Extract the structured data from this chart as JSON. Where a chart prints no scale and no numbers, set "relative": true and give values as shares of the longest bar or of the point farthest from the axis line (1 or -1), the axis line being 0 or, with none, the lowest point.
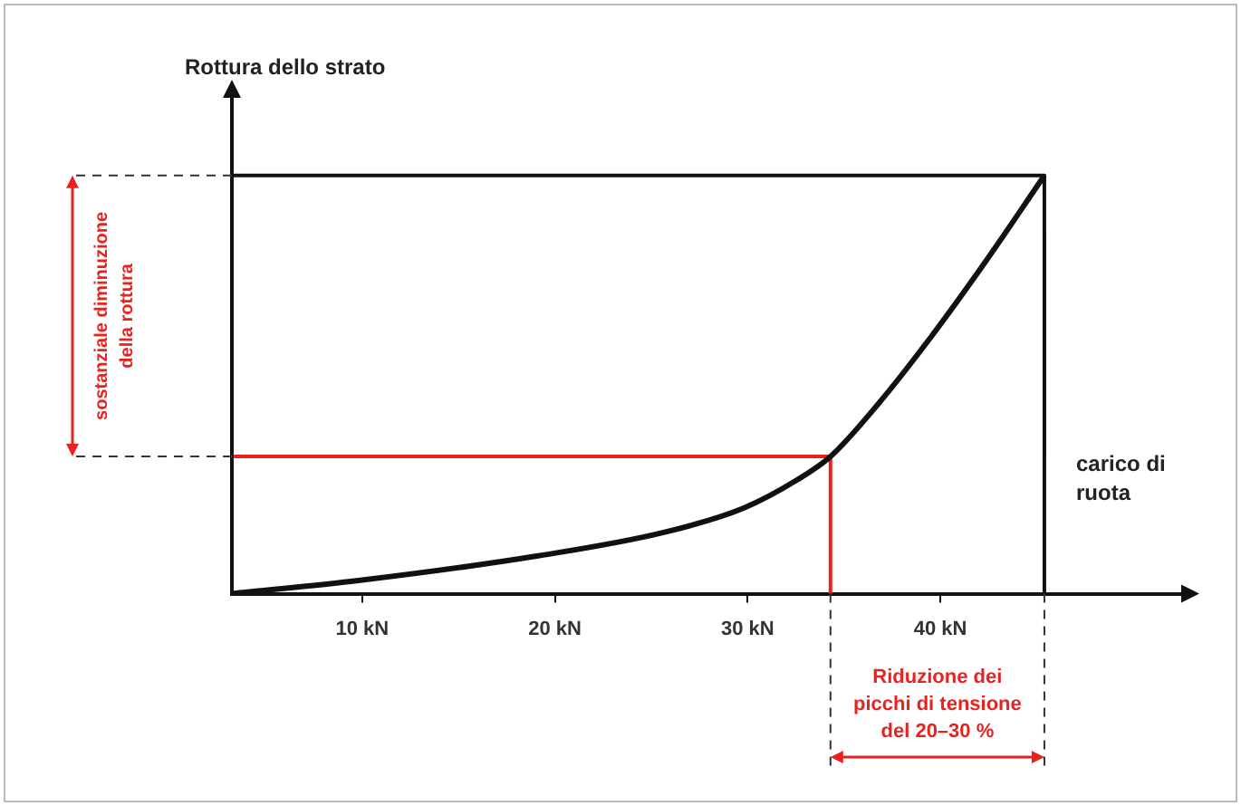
{
  "chart_data": {
    "type": "line",
    "relative": true,
    "xlabel": "carico di ruota",
    "ylabel": "Rottura dello strato",
    "xlim": [
      3.24,
      52.5
    ],
    "xticks": [
      {
        "value": 10,
        "label": "10 kN"
      },
      {
        "value": 20,
        "label": "20 kN"
      },
      {
        "value": 30,
        "label": "30 kN"
      },
      {
        "value": 40,
        "label": "40 kN"
      }
    ],
    "grid": false,
    "legend": false,
    "marker": "none",
    "series": [
      {
        "color": "#111111",
        "x": [
          3.24,
          9.9,
          19.2,
          25.6,
          29.8,
          32.6,
          34.3,
          36.8,
          39.5,
          42.3,
          45.4
        ],
        "values": [
          0,
          0.032,
          0.091,
          0.146,
          0.205,
          0.273,
          0.328,
          0.455,
          0.613,
          0.791,
          1
        ]
      },
      {
        "color": "#111111",
        "x": [
          3.24,
          45.4,
          45.4
        ],
        "values": [
          1,
          1,
          0
        ]
      },
      {
        "color": "#e8231f",
        "x": [
          3.24,
          34.3,
          34.3
        ],
        "values": [
          0.328,
          0.328,
          0
        ]
      }
    ],
    "annotations": [
      "sostanziale diminuzione della rottura",
      "Riduzione dei picchi di tensione del 20–30 %"
    ]
  }
}
